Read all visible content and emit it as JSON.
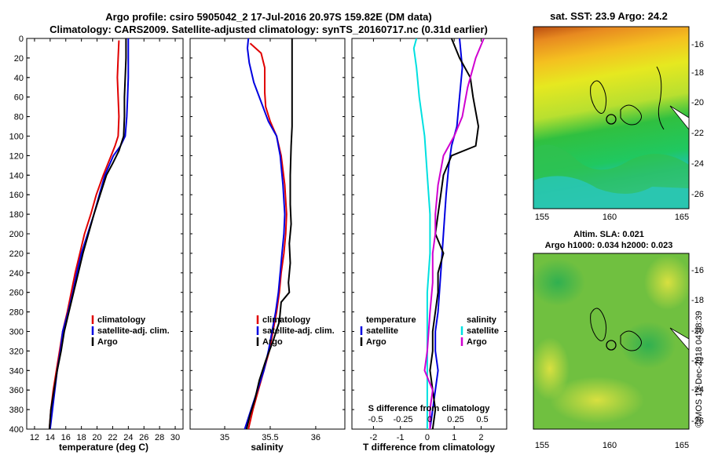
{
  "header": {
    "line1": "Argo profile: csiro 5905042_2 17-Jul-2016 20.97S 159.82E (DM data)",
    "line2": "Climatology: CARS2009. Satellite-adjusted climatology: synTS_20160717.nc (0.31d earlier)"
  },
  "credit": "©IMOS 13-Dec-2018 04:08:39",
  "colors": {
    "climatology": "#e00000",
    "satellite": "#0000e0",
    "argo": "#000000",
    "s_satellite": "#00e0e0",
    "s_argo": "#d000d0"
  },
  "chart_data": [
    {
      "type": "line",
      "name": "temperature",
      "xlabel": "temperature (deg C)",
      "xlim": [
        11,
        31
      ],
      "ylim": [
        400,
        0
      ],
      "xticks": [
        12,
        14,
        16,
        18,
        20,
        22,
        24,
        26,
        28,
        30
      ],
      "yticks": [
        0,
        20,
        40,
        60,
        80,
        100,
        120,
        140,
        160,
        180,
        200,
        220,
        240,
        260,
        280,
        300,
        320,
        340,
        360,
        380,
        400
      ],
      "legend": [
        "climatology",
        "satellite-adj. clim.",
        "Argo"
      ],
      "series": [
        {
          "name": "climatology",
          "color": "#e00000",
          "points": [
            [
              22.8,
              2
            ],
            [
              22.7,
              20
            ],
            [
              22.6,
              40
            ],
            [
              22.7,
              60
            ],
            [
              22.8,
              80
            ],
            [
              22.7,
              100
            ],
            [
              22.3,
              110
            ],
            [
              21.8,
              120
            ],
            [
              20.8,
              140
            ],
            [
              19.9,
              160
            ],
            [
              19.2,
              180
            ],
            [
              18.4,
              200
            ],
            [
              17.8,
              220
            ],
            [
              17.2,
              240
            ],
            [
              16.7,
              260
            ],
            [
              16.2,
              280
            ],
            [
              15.6,
              300
            ],
            [
              15.2,
              320
            ],
            [
              14.8,
              340
            ],
            [
              14.4,
              360
            ],
            [
              14.1,
              380
            ],
            [
              13.9,
              400
            ]
          ]
        },
        {
          "name": "satellite-adj. clim.",
          "color": "#0000e0",
          "points": [
            [
              24.0,
              0
            ],
            [
              24.0,
              20
            ],
            [
              24.0,
              40
            ],
            [
              23.9,
              60
            ],
            [
              23.8,
              80
            ],
            [
              23.6,
              100
            ],
            [
              23.0,
              110
            ],
            [
              22.1,
              120
            ],
            [
              21.0,
              140
            ],
            [
              20.3,
              160
            ],
            [
              19.6,
              180
            ],
            [
              18.8,
              200
            ],
            [
              18.0,
              220
            ],
            [
              17.4,
              240
            ],
            [
              16.9,
              260
            ],
            [
              16.3,
              280
            ],
            [
              15.6,
              300
            ],
            [
              15.3,
              320
            ],
            [
              14.9,
              340
            ],
            [
              14.6,
              360
            ],
            [
              14.3,
              380
            ],
            [
              14.0,
              400
            ]
          ]
        },
        {
          "name": "Argo",
          "color": "#000000",
          "points": [
            [
              23.7,
              0
            ],
            [
              23.7,
              20
            ],
            [
              23.6,
              40
            ],
            [
              23.5,
              60
            ],
            [
              23.5,
              80
            ],
            [
              23.4,
              100
            ],
            [
              22.8,
              115
            ],
            [
              22.0,
              128
            ],
            [
              21.2,
              140
            ],
            [
              20.4,
              160
            ],
            [
              19.6,
              180
            ],
            [
              18.9,
              200
            ],
            [
              18.2,
              220
            ],
            [
              17.6,
              240
            ],
            [
              17.0,
              260
            ],
            [
              16.4,
              280
            ],
            [
              15.8,
              300
            ],
            [
              15.4,
              320
            ],
            [
              14.9,
              340
            ],
            [
              14.5,
              360
            ],
            [
              14.1,
              380
            ],
            [
              13.9,
              400
            ]
          ]
        }
      ]
    },
    {
      "type": "line",
      "name": "salinity",
      "xlabel": "salinity",
      "xlim": [
        34.62,
        36.32
      ],
      "ylim": [
        400,
        0
      ],
      "xticks": [
        35,
        35.5,
        36
      ],
      "xticklabels": [
        "35",
        "35.5",
        "36"
      ],
      "legend": [
        "climatology",
        "satellite-adj. clim.",
        "Argo"
      ],
      "series": [
        {
          "name": "climatology",
          "color": "#e00000",
          "points": [
            [
              35.28,
              5
            ],
            [
              35.4,
              15
            ],
            [
              35.44,
              30
            ],
            [
              35.44,
              55
            ],
            [
              35.45,
              70
            ],
            [
              35.5,
              85
            ],
            [
              35.57,
              100
            ],
            [
              35.62,
              120
            ],
            [
              35.66,
              150
            ],
            [
              35.68,
              180
            ],
            [
              35.67,
              200
            ],
            [
              35.65,
              220
            ],
            [
              35.62,
              240
            ],
            [
              35.6,
              260
            ],
            [
              35.57,
              280
            ],
            [
              35.53,
              300
            ],
            [
              35.49,
              320
            ],
            [
              35.43,
              340
            ],
            [
              35.37,
              360
            ],
            [
              35.31,
              380
            ],
            [
              35.26,
              400
            ]
          ]
        },
        {
          "name": "satellite-adj. clim.",
          "color": "#0000e0",
          "points": [
            [
              35.26,
              0
            ],
            [
              35.25,
              10
            ],
            [
              35.27,
              25
            ],
            [
              35.32,
              45
            ],
            [
              35.4,
              65
            ],
            [
              35.48,
              85
            ],
            [
              35.57,
              100
            ],
            [
              35.61,
              120
            ],
            [
              35.64,
              150
            ],
            [
              35.66,
              180
            ],
            [
              35.65,
              200
            ],
            [
              35.63,
              220
            ],
            [
              35.61,
              240
            ],
            [
              35.59,
              260
            ],
            [
              35.56,
              280
            ],
            [
              35.52,
              300
            ],
            [
              35.48,
              320
            ],
            [
              35.43,
              340
            ],
            [
              35.36,
              360
            ],
            [
              35.29,
              380
            ],
            [
              35.22,
              400
            ]
          ]
        },
        {
          "name": "Argo",
          "color": "#000000",
          "points": [
            [
              35.74,
              0
            ],
            [
              35.74,
              30
            ],
            [
              35.74,
              60
            ],
            [
              35.74,
              90
            ],
            [
              35.73,
              110
            ],
            [
              35.72,
              140
            ],
            [
              35.72,
              170
            ],
            [
              35.73,
              190
            ],
            [
              35.71,
              210
            ],
            [
              35.72,
              230
            ],
            [
              35.7,
              250
            ],
            [
              35.71,
              260
            ],
            [
              35.62,
              270
            ],
            [
              35.6,
              290
            ],
            [
              35.53,
              310
            ],
            [
              35.45,
              330
            ],
            [
              35.38,
              350
            ],
            [
              35.33,
              370
            ],
            [
              35.28,
              385
            ],
            [
              35.24,
              400
            ]
          ]
        }
      ]
    },
    {
      "type": "line",
      "name": "differences",
      "xlabel": "T difference from climatology",
      "xlim": [
        -2.8,
        2.95
      ],
      "ylim": [
        400,
        0
      ],
      "xticks": [
        -2,
        -1,
        0,
        1,
        2
      ],
      "second_axis_label": "S difference from climatology",
      "second_ticks": [
        "-0.5",
        "-0.25",
        "0",
        "0.25",
        "0.5"
      ],
      "legend_left_title": "temperature",
      "legend_right_title": "salinity",
      "legend_entries": [
        "satellite",
        "Argo",
        "satellite",
        "Argo"
      ],
      "series": [
        {
          "name": "temperature satellite",
          "color": "#0000e0",
          "points": [
            [
              1.2,
              0
            ],
            [
              1.3,
              30
            ],
            [
              1.2,
              60
            ],
            [
              1.1,
              90
            ],
            [
              0.9,
              110
            ],
            [
              0.8,
              130
            ],
            [
              0.7,
              160
            ],
            [
              0.6,
              200
            ],
            [
              0.5,
              240
            ],
            [
              0.4,
              280
            ],
            [
              0.3,
              300
            ],
            [
              0.3,
              320
            ],
            [
              0.4,
              340
            ],
            [
              0.3,
              360
            ],
            [
              0.2,
              380
            ],
            [
              0.1,
              400
            ]
          ]
        },
        {
          "name": "temperature Argo",
          "color": "#000000",
          "points": [
            [
              0.9,
              0
            ],
            [
              1.2,
              20
            ],
            [
              1.6,
              40
            ],
            [
              1.7,
              60
            ],
            [
              1.9,
              90
            ],
            [
              1.8,
              110
            ],
            [
              0.9,
              120
            ],
            [
              0.6,
              140
            ],
            [
              0.5,
              160
            ],
            [
              0.4,
              180
            ],
            [
              0.3,
              200
            ],
            [
              0.6,
              220
            ],
            [
              0.4,
              240
            ],
            [
              0.4,
              260
            ],
            [
              0.3,
              280
            ],
            [
              0.2,
              300
            ],
            [
              0.2,
              320
            ],
            [
              0.1,
              340
            ],
            [
              0.2,
              360
            ],
            [
              0.3,
              380
            ],
            [
              0.2,
              400
            ]
          ]
        },
        {
          "name": "salinity satellite",
          "color": "#00e0e0",
          "points": [
            [
              -0.4,
              0
            ],
            [
              -0.5,
              10
            ],
            [
              -0.4,
              30
            ],
            [
              -0.3,
              60
            ],
            [
              -0.1,
              100
            ],
            [
              0.0,
              140
            ],
            [
              0.1,
              180
            ],
            [
              0.1,
              220
            ],
            [
              0.0,
              260
            ],
            [
              0.0,
              300
            ],
            [
              0.0,
              340
            ],
            [
              0.0,
              380
            ],
            [
              0.0,
              400
            ]
          ]
        },
        {
          "name": "salinity Argo",
          "color": "#d000d0",
          "points": [
            [
              2.1,
              0
            ],
            [
              1.8,
              20
            ],
            [
              1.5,
              50
            ],
            [
              1.3,
              80
            ],
            [
              1.0,
              100
            ],
            [
              0.6,
              120
            ],
            [
              0.4,
              150
            ],
            [
              0.3,
              180
            ],
            [
              0.3,
              200
            ],
            [
              0.2,
              220
            ],
            [
              0.2,
              250
            ],
            [
              0.1,
              280
            ],
            [
              0.0,
              320
            ],
            [
              -0.1,
              340
            ],
            [
              0.2,
              360
            ],
            [
              0.1,
              380
            ],
            [
              0.1,
              400
            ]
          ]
        }
      ]
    }
  ],
  "maps": [
    {
      "title": "sat. SST: 23.9 Argo: 24.2",
      "xticks": [
        "155",
        "160",
        "165"
      ],
      "yticks": [
        "-16",
        "-18",
        "-20",
        "-22",
        "-24",
        "-26"
      ]
    },
    {
      "title_line1": "Altim. SLA: 0.021",
      "title_line2": "Argo h1000: 0.034 h2000: 0.023",
      "xticks": [
        "155",
        "160",
        "165"
      ],
      "yticks": [
        "-16",
        "-18",
        "-20",
        "-22",
        "-24",
        "-26"
      ]
    }
  ]
}
